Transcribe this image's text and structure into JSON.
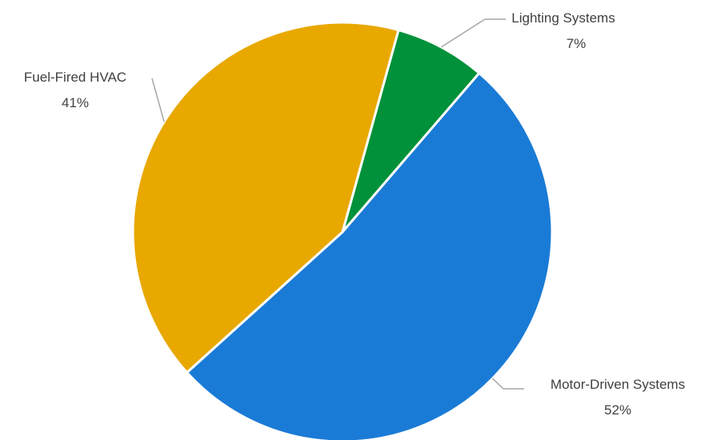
{
  "chart_data": {
    "type": "pie",
    "title": "",
    "slices": [
      {
        "name": "Lighting Systems",
        "value": 7,
        "label": "7%",
        "color": "#00913a"
      },
      {
        "name": "Motor-Driven Systems",
        "value": 52,
        "label": "52%",
        "color": "#1a7bd6"
      },
      {
        "name": "Fuel-Fired HVAC",
        "value": 41,
        "label": "41%",
        "color": "#e8a800"
      }
    ],
    "unit": "%",
    "data_labels": "outside with leader lines",
    "legend": "none"
  }
}
